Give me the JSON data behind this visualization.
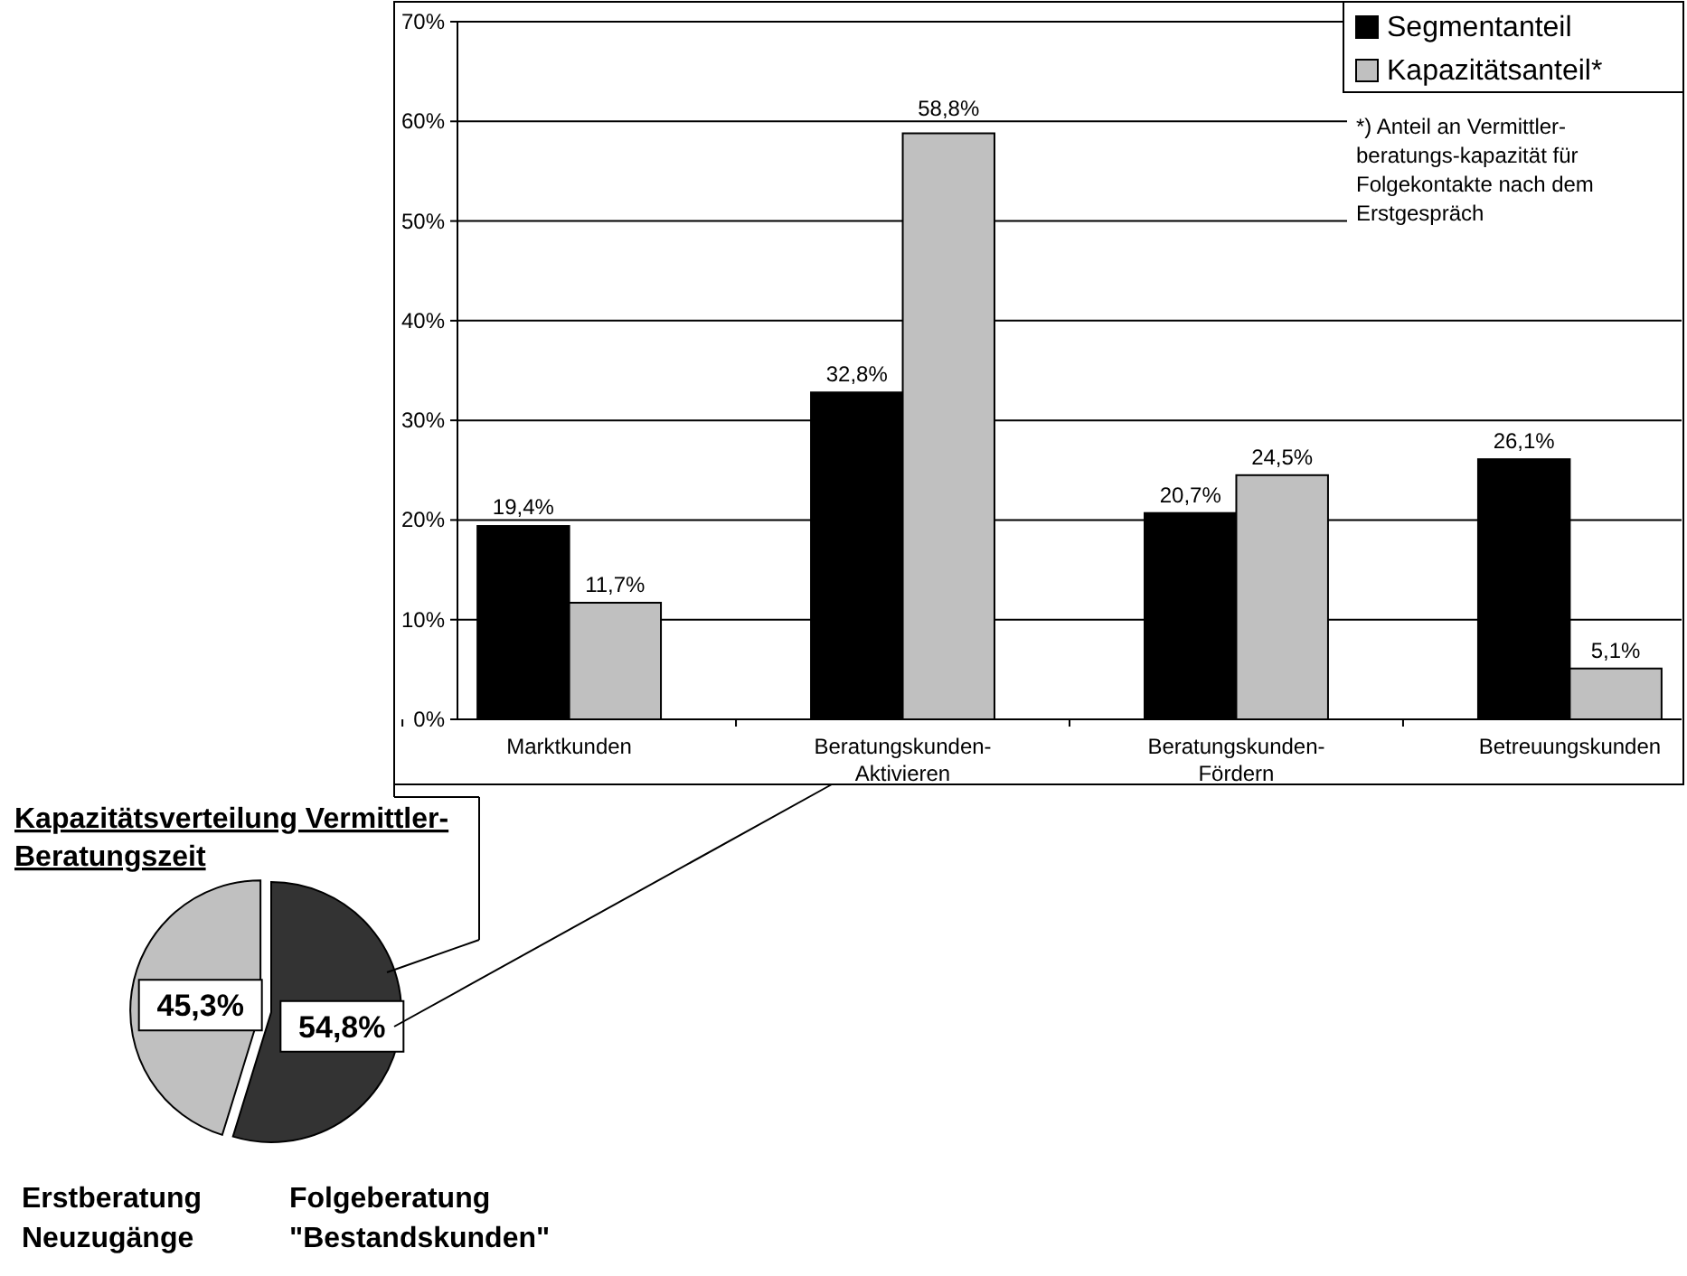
{
  "chart_data": [
    {
      "type": "bar",
      "categories": [
        "Marktkunden",
        "Beratungskunden-Aktivieren",
        "Beratungskunden-Fördern",
        "Betreuungskunden"
      ],
      "series": [
        {
          "name": "Segmentanteil",
          "color": "#000000",
          "values": [
            19.4,
            32.8,
            20.7,
            26.1
          ],
          "value_labels": [
            "19,4%",
            "32,8%",
            "20,7%",
            "26,1%"
          ]
        },
        {
          "name": "Kapazitätsanteil*",
          "color": "#c0c0c0",
          "values": [
            11.7,
            58.8,
            24.5,
            5.1
          ],
          "value_labels": [
            "11,7%",
            "58,8%",
            "24,5%",
            "5,1%"
          ]
        }
      ],
      "ylim": [
        0,
        70
      ],
      "yticks": [
        {
          "value": 0,
          "label": "0%"
        },
        {
          "value": 10,
          "label": "10%"
        },
        {
          "value": 20,
          "label": "20%"
        },
        {
          "value": 30,
          "label": "30%"
        },
        {
          "value": 40,
          "label": "40%"
        },
        {
          "value": 50,
          "label": "50%"
        },
        {
          "value": 60,
          "label": "60%"
        },
        {
          "value": 70,
          "label": "70%"
        }
      ],
      "grid": "y",
      "legend": "top right",
      "annotations": [
        "*) Anteil an Vermittler-beratungs-kapazität für Folgekontakte nach dem Erstgespräch"
      ]
    },
    {
      "type": "pie",
      "title": "Kapazitätsverteilung Vermittler-Beratungszeit",
      "categories": [
        "Folgeberatung \"Bestandskunden\"",
        "Erstberatung Neuzugänge"
      ],
      "values": [
        54.8,
        45.3
      ],
      "colors": [
        "#333333",
        "#c0c0c0"
      ],
      "value_labels": [
        "54,8%",
        "45,3%"
      ]
    }
  ]
}
